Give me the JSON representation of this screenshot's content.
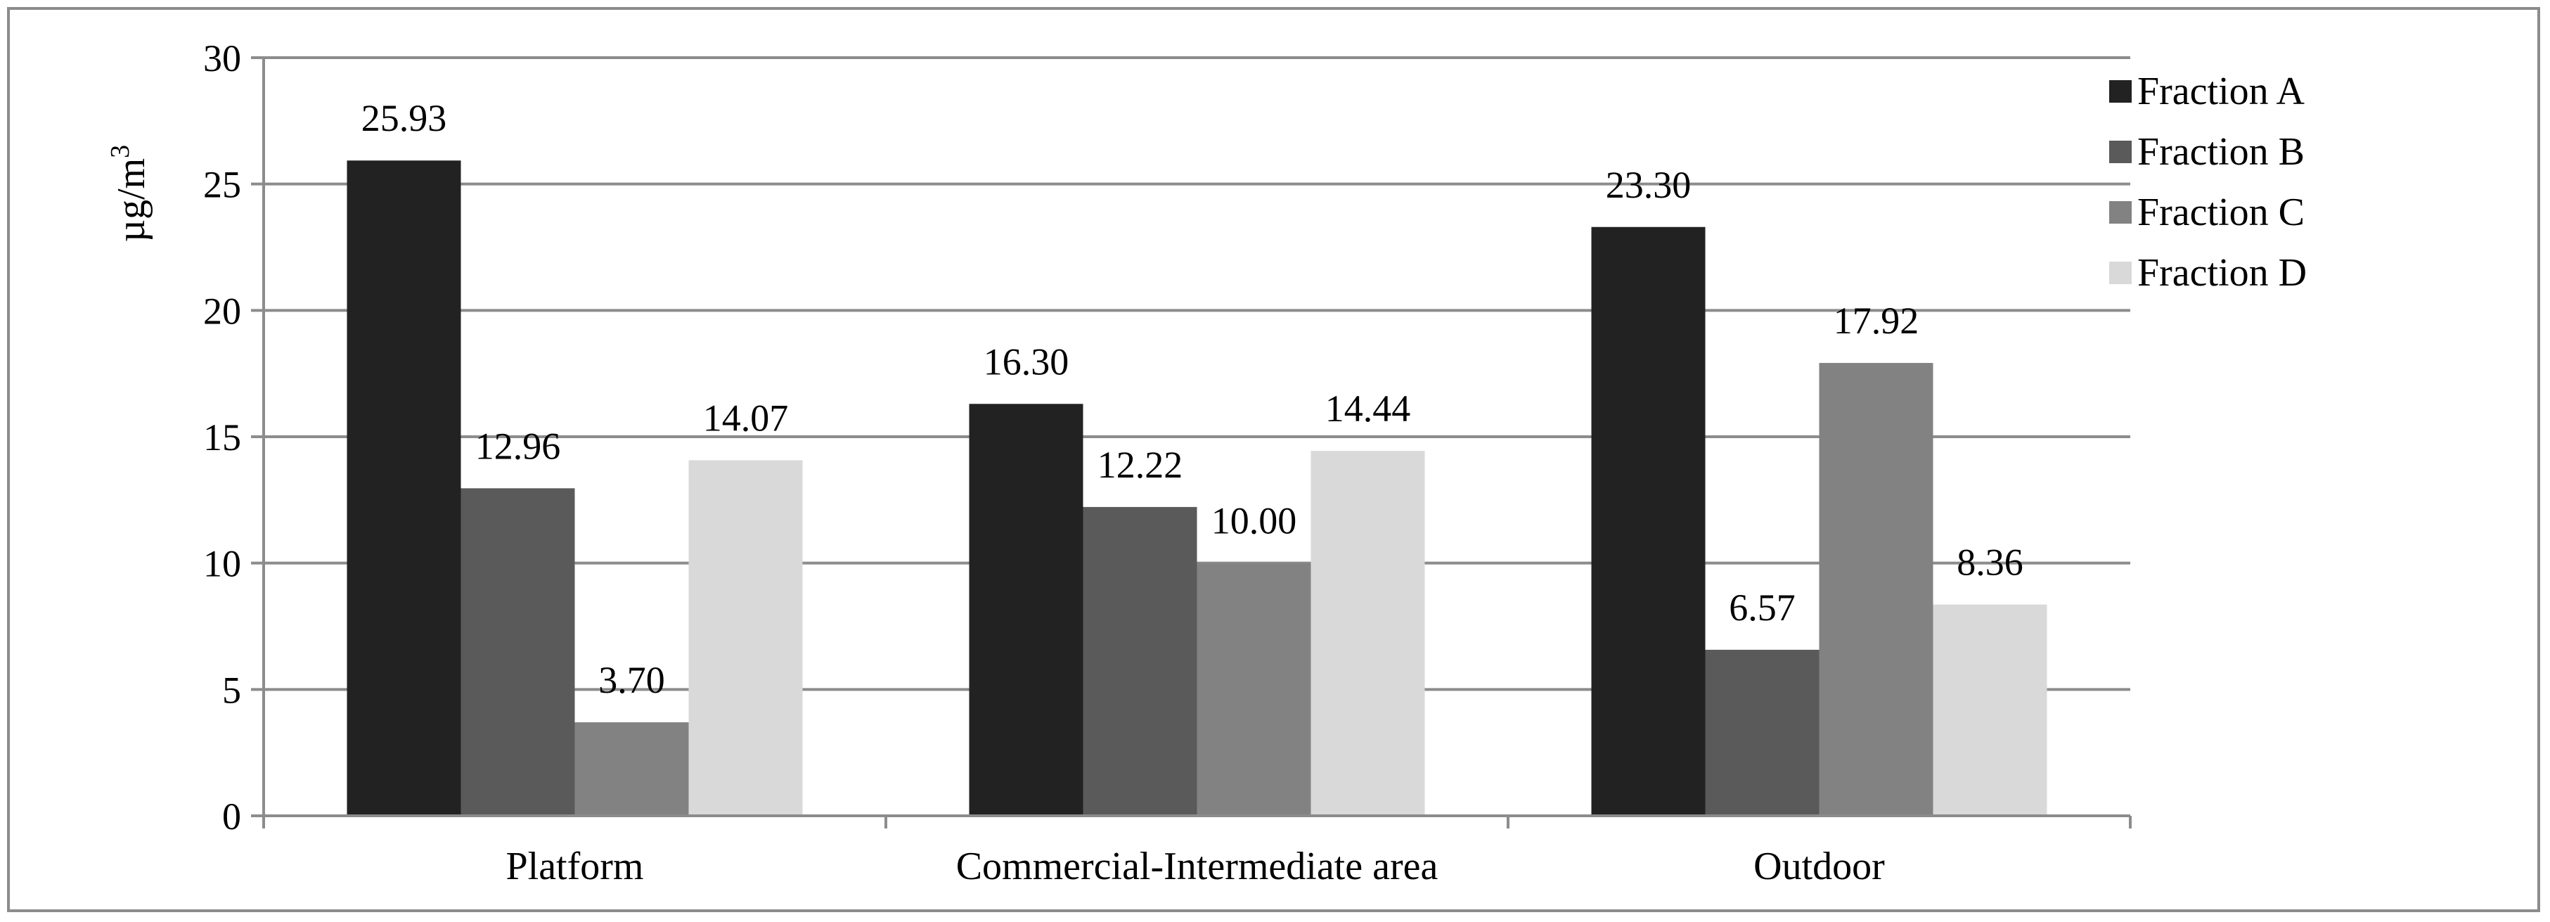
{
  "chart_data": {
    "type": "bar",
    "title": "",
    "xlabel": "",
    "ylabel_base": "µg/m",
    "ylabel_sup": "3",
    "ylim": [
      0,
      30
    ],
    "yticks": [
      0,
      5,
      10,
      15,
      20,
      25,
      30
    ],
    "grid": true,
    "legend_position": "top-right",
    "categories": [
      "Platform",
      "Commercial-Intermediate area",
      "Outdoor"
    ],
    "series": [
      {
        "name": "Fraction A",
        "values": [
          25.93,
          16.3,
          23.3
        ],
        "labels": [
          "25.93",
          "16.30",
          "23.30"
        ],
        "color": "#222222"
      },
      {
        "name": "Fraction B",
        "values": [
          12.96,
          12.22,
          6.57
        ],
        "labels": [
          "12.96",
          "12.22",
          "6.57"
        ],
        "color": "#5a5a5a"
      },
      {
        "name": "Fraction C",
        "values": [
          3.7,
          10.0,
          17.92
        ],
        "labels": [
          "3.70",
          "10.00",
          "17.92"
        ],
        "color": "#828282"
      },
      {
        "name": "Fraction D",
        "values": [
          14.07,
          14.44,
          8.36
        ],
        "labels": [
          "14.07",
          "14.44",
          "8.36"
        ],
        "color": "#d9d9d9"
      }
    ]
  }
}
